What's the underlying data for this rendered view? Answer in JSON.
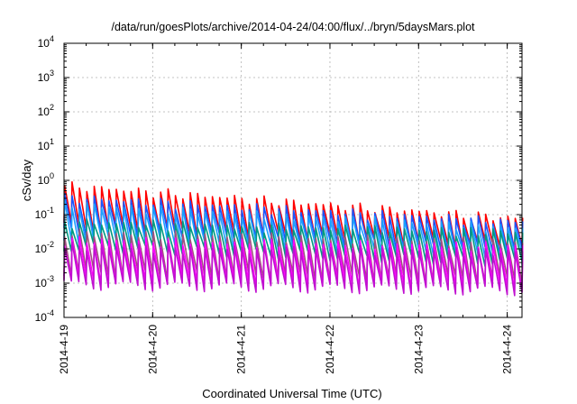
{
  "chart_data": {
    "type": "line",
    "title": "/data/run/goesPlots/archive/2014-04-24/04:00/flux/../bryn/5daysMars.plot",
    "xlabel": "Coordinated Universal Time (UTC)",
    "ylabel": "cSv/day",
    "y_scale": "log",
    "ylim": [
      0.0001,
      10000
    ],
    "y_ticks": [
      {
        "base": "10",
        "exp": "-4",
        "value": 0.0001
      },
      {
        "base": "10",
        "exp": "-3",
        "value": 0.001
      },
      {
        "base": "10",
        "exp": "-2",
        "value": 0.01
      },
      {
        "base": "10",
        "exp": "-1",
        "value": 0.1
      },
      {
        "base": "10",
        "exp": "0",
        "value": 1
      },
      {
        "base": "10",
        "exp": "1",
        "value": 10
      },
      {
        "base": "10",
        "exp": "2",
        "value": 100
      },
      {
        "base": "10",
        "exp": "3",
        "value": 1000
      },
      {
        "base": "10",
        "exp": "4",
        "value": 10000
      }
    ],
    "xlim": [
      "2014-04-19T00:00",
      "2014-04-24T04:00"
    ],
    "x_ticks": [
      {
        "label": "2014-4-19",
        "value": "2014-04-19T00:00"
      },
      {
        "label": "2014-4-20",
        "value": "2014-04-20T00:00"
      },
      {
        "label": "2014-4-21",
        "value": "2014-04-21T00:00"
      },
      {
        "label": "2014-4-22",
        "value": "2014-04-22T00:00"
      },
      {
        "label": "2014-4-23",
        "value": "2014-04-23T00:00"
      },
      {
        "label": "2014-4-24",
        "value": "2014-04-24T00:00"
      }
    ],
    "grid": true,
    "legend": "none",
    "cycle_hours": 2,
    "series": [
      {
        "color": "#ff0000",
        "peak_start": 0.7,
        "peak_end": 0.075,
        "trough_start": 0.045,
        "trough_end": 0.012
      },
      {
        "color": "#1a55ff",
        "peak_start": 0.32,
        "peak_end": 0.06,
        "trough_start": 0.035,
        "trough_end": 0.009
      },
      {
        "color": "#1aa0ff",
        "peak_start": 0.2,
        "peak_end": 0.04,
        "trough_start": 0.02,
        "trough_end": 0.006
      },
      {
        "color": "#009a80",
        "peak_start": 0.06,
        "peak_end": 0.03,
        "trough_start": 0.012,
        "trough_end": 0.004
      },
      {
        "color": "#a05080",
        "peak_start": 0.03,
        "peak_end": 0.015,
        "trough_start": 0.002,
        "trough_end": 0.0012
      },
      {
        "color": "#ff00ff",
        "peak_start": 0.018,
        "peak_end": 0.012,
        "trough_start": 0.0012,
        "trough_end": 0.0008
      },
      {
        "color": "#c010d0",
        "peak_start": 0.012,
        "peak_end": 0.008,
        "trough_start": 0.0009,
        "trough_end": 0.0006
      }
    ]
  }
}
